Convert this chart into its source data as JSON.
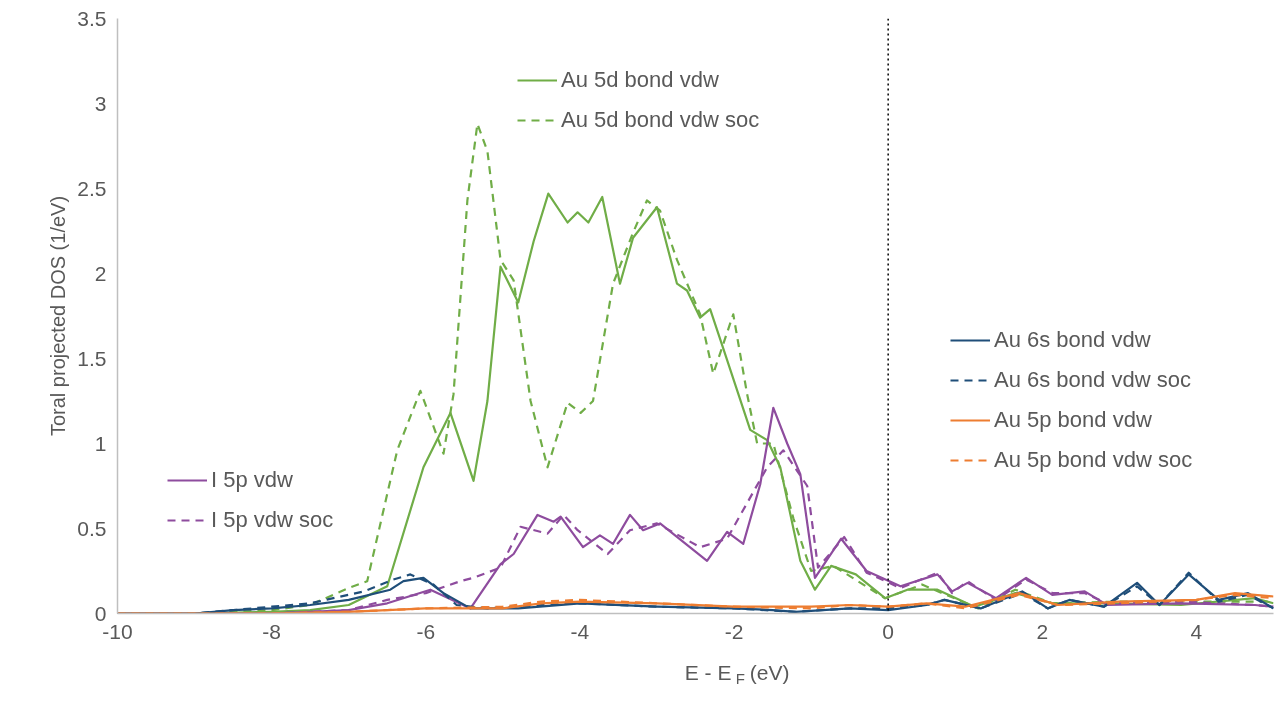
{
  "chart_data": {
    "type": "line",
    "xlabel": "E - E$_{F}$ (eV)",
    "ylabel": "Toral projected DOS (1/eV)",
    "xlim": [
      -10,
      5
    ],
    "xticks": [
      -10,
      -8,
      -6,
      -4,
      -2,
      0,
      2,
      4
    ],
    "ylim": [
      0,
      3.5
    ],
    "yticks": [
      0,
      0.5,
      1,
      1.5,
      2,
      2.5,
      3,
      3.5
    ],
    "grid": false,
    "legend": "right",
    "marker": "none",
    "ref_lines": [
      {
        "axis": "x",
        "value": 0,
        "label": null,
        "color": "#000000",
        "line_style": "dotted"
      }
    ],
    "series": [
      {
        "name": "Au 5d bond vdw",
        "color": "#70ad47",
        "line_style": "solid",
        "x": [
          -10,
          -9,
          -8,
          -7.5,
          -7,
          -6.5,
          -6.03,
          -5.68,
          -5.38,
          -5.2,
          -5.03,
          -4.8,
          -4.6,
          -4.41,
          -4.16,
          -4.03,
          -3.89,
          -3.71,
          -3.48,
          -3.31,
          -3,
          -2.74,
          -2.61,
          -2.44,
          -2.31,
          -2.14,
          -1.79,
          -1.57,
          -1.4,
          -1.14,
          -0.95,
          -0.74,
          -0.42,
          -0.04,
          0.25,
          0.64,
          1.12,
          1.65,
          2.13,
          2.84,
          3.8,
          4.76,
          5
        ],
        "values": [
          0,
          0,
          0.01,
          0.02,
          0.05,
          0.16,
          0.86,
          1.18,
          0.78,
          1.25,
          2.04,
          1.83,
          2.19,
          2.47,
          2.3,
          2.36,
          2.3,
          2.45,
          1.94,
          2.21,
          2.39,
          1.94,
          1.9,
          1.74,
          1.79,
          1.56,
          1.08,
          1.02,
          0.86,
          0.31,
          0.14,
          0.28,
          0.23,
          0.09,
          0.14,
          0.14,
          0.04,
          0.12,
          0.06,
          0.06,
          0.05,
          0.09,
          0.06
        ]
      },
      {
        "name": "Au 5d bond vdw soc",
        "color": "#70ad47",
        "line_style": "dashed",
        "x": [
          -10,
          -9,
          -8,
          -7.5,
          -7,
          -6.76,
          -6.37,
          -6.07,
          -5.77,
          -5.64,
          -5.46,
          -5.33,
          -5.2,
          -5.03,
          -4.86,
          -4.64,
          -4.42,
          -4.16,
          -3.99,
          -3.83,
          -3.57,
          -3.31,
          -3.13,
          -2.96,
          -2.74,
          -2.44,
          -2.27,
          -2.01,
          -1.83,
          -1.7,
          -1.49,
          -1.23,
          -1,
          -0.71,
          -0.04,
          0.44,
          1.17,
          1.65,
          2.13,
          3,
          4,
          5
        ],
        "values": [
          0,
          0,
          0.02,
          0.05,
          0.15,
          0.19,
          0.96,
          1.31,
          0.94,
          1.29,
          2.43,
          2.88,
          2.72,
          2.08,
          1.96,
          1.25,
          0.86,
          1.24,
          1.18,
          1.25,
          1.94,
          2.24,
          2.43,
          2.37,
          2.08,
          1.76,
          1.41,
          1.76,
          1.29,
          1.0,
          1.0,
          0.56,
          0.25,
          0.28,
          0.09,
          0.17,
          0.03,
          0.14,
          0.06,
          0.07,
          0.07,
          0.07
        ]
      },
      {
        "name": "I 5p vdw",
        "color": "#8e4c9e",
        "line_style": "solid",
        "x": [
          -10,
          -8,
          -7,
          -6.5,
          -5.94,
          -5.42,
          -5.03,
          -4.86,
          -4.55,
          -4.34,
          -4.25,
          -3.96,
          -3.74,
          -3.57,
          -3.35,
          -3.18,
          -2.96,
          -2.35,
          -2.09,
          -1.88,
          -1.66,
          -1.49,
          -1.31,
          -1.14,
          -0.95,
          -0.61,
          -0.28,
          0.16,
          0.64,
          0.83,
          1.03,
          1.4,
          1.79,
          2.13,
          2.55,
          2.84,
          3.8,
          4.76,
          5
        ],
        "values": [
          0,
          0,
          0.02,
          0.06,
          0.14,
          0.03,
          0.29,
          0.35,
          0.58,
          0.54,
          0.57,
          0.39,
          0.46,
          0.41,
          0.58,
          0.49,
          0.53,
          0.31,
          0.48,
          0.41,
          0.76,
          1.21,
          1.0,
          0.82,
          0.21,
          0.44,
          0.25,
          0.16,
          0.23,
          0.13,
          0.18,
          0.09,
          0.21,
          0.11,
          0.13,
          0.05,
          0.06,
          0.05,
          0.04
        ]
      },
      {
        "name": "I 5p vdw soc",
        "color": "#8e4c9e",
        "line_style": "dashed",
        "x": [
          -10,
          -8,
          -7,
          -6.5,
          -6,
          -5.55,
          -5.38,
          -5.03,
          -4.77,
          -4.42,
          -4.21,
          -4.03,
          -3.64,
          -3.35,
          -3,
          -2.44,
          -2.09,
          -1.83,
          -1.57,
          -1.36,
          -1.05,
          -0.91,
          -0.57,
          -0.28,
          0.16,
          0.64,
          0.83,
          1.03,
          1.4,
          1.79,
          2.13,
          2.55,
          2.84,
          3.8,
          4.76,
          5
        ],
        "values": [
          0,
          0,
          0.02,
          0.08,
          0.12,
          0.19,
          0.21,
          0.27,
          0.51,
          0.47,
          0.58,
          0.49,
          0.35,
          0.49,
          0.53,
          0.39,
          0.44,
          0.65,
          0.86,
          0.96,
          0.75,
          0.27,
          0.45,
          0.24,
          0.15,
          0.24,
          0.12,
          0.19,
          0.08,
          0.2,
          0.12,
          0.12,
          0.06,
          0.07,
          0.05,
          0.04
        ]
      },
      {
        "name": "Au 6s bond vdw",
        "color": "#1f4e79",
        "line_style": "solid",
        "x": [
          -10,
          -9,
          -8.5,
          -8,
          -7.5,
          -7,
          -6.46,
          -6.29,
          -6.03,
          -5.77,
          -5.42,
          -4.8,
          -4,
          -3,
          -2,
          -1.5,
          -1.2,
          -0.5,
          0,
          0.5,
          0.73,
          1.2,
          1.74,
          2.07,
          2.35,
          2.8,
          3.23,
          3.52,
          3.9,
          4.29,
          4.67,
          5
        ],
        "values": [
          0,
          0,
          0.02,
          0.03,
          0.05,
          0.08,
          0.14,
          0.19,
          0.21,
          0.12,
          0.03,
          0.03,
          0.06,
          0.04,
          0.03,
          0.02,
          0.01,
          0.03,
          0.02,
          0.05,
          0.08,
          0.03,
          0.13,
          0.03,
          0.08,
          0.04,
          0.18,
          0.05,
          0.23,
          0.08,
          0.12,
          0.03
        ]
      },
      {
        "name": "Au 6s bond vdw soc",
        "color": "#1f4e79",
        "line_style": "dashed",
        "x": [
          -10,
          -9,
          -8.5,
          -8,
          -7.5,
          -6.8,
          -6.42,
          -6.2,
          -5.9,
          -5.6,
          -5.2,
          -4.5,
          -4,
          -3,
          -2,
          -1.2,
          -0.5,
          0,
          0.5,
          0.73,
          1.2,
          1.74,
          2.07,
          2.35,
          2.8,
          3.23,
          3.52,
          3.9,
          4.29,
          4.67,
          5
        ],
        "values": [
          0,
          0,
          0.02,
          0.04,
          0.06,
          0.13,
          0.2,
          0.23,
          0.17,
          0.05,
          0.03,
          0.05,
          0.06,
          0.04,
          0.03,
          0.01,
          0.03,
          0.03,
          0.05,
          0.08,
          0.03,
          0.12,
          0.03,
          0.08,
          0.04,
          0.16,
          0.05,
          0.24,
          0.07,
          0.11,
          0.03
        ]
      },
      {
        "name": "Au 5p bond vdw",
        "color": "#ed7d31",
        "line_style": "solid",
        "x": [
          -10,
          -8,
          -7,
          -6,
          -5,
          -4.5,
          -4,
          -3,
          -2,
          -1,
          -0.5,
          0,
          0.5,
          1,
          1.7,
          2.2,
          3,
          4,
          4.5,
          5
        ],
        "values": [
          0,
          0,
          0.01,
          0.03,
          0.03,
          0.06,
          0.07,
          0.06,
          0.04,
          0.04,
          0.05,
          0.04,
          0.06,
          0.04,
          0.12,
          0.05,
          0.07,
          0.08,
          0.12,
          0.1
        ]
      },
      {
        "name": "Au 5p bond vdw soc",
        "color": "#ed7d31",
        "line_style": "dashed",
        "x": [
          -10,
          -8,
          -7,
          -6,
          -5,
          -4.5,
          -4,
          -3,
          -2,
          -1,
          -0.5,
          0,
          0.5,
          1,
          1.7,
          2.2,
          3,
          4,
          4.5,
          5
        ],
        "values": [
          0,
          0,
          0.01,
          0.03,
          0.04,
          0.07,
          0.08,
          0.06,
          0.04,
          0.03,
          0.05,
          0.04,
          0.06,
          0.03,
          0.11,
          0.05,
          0.06,
          0.08,
          0.11,
          0.09
        ]
      }
    ]
  }
}
